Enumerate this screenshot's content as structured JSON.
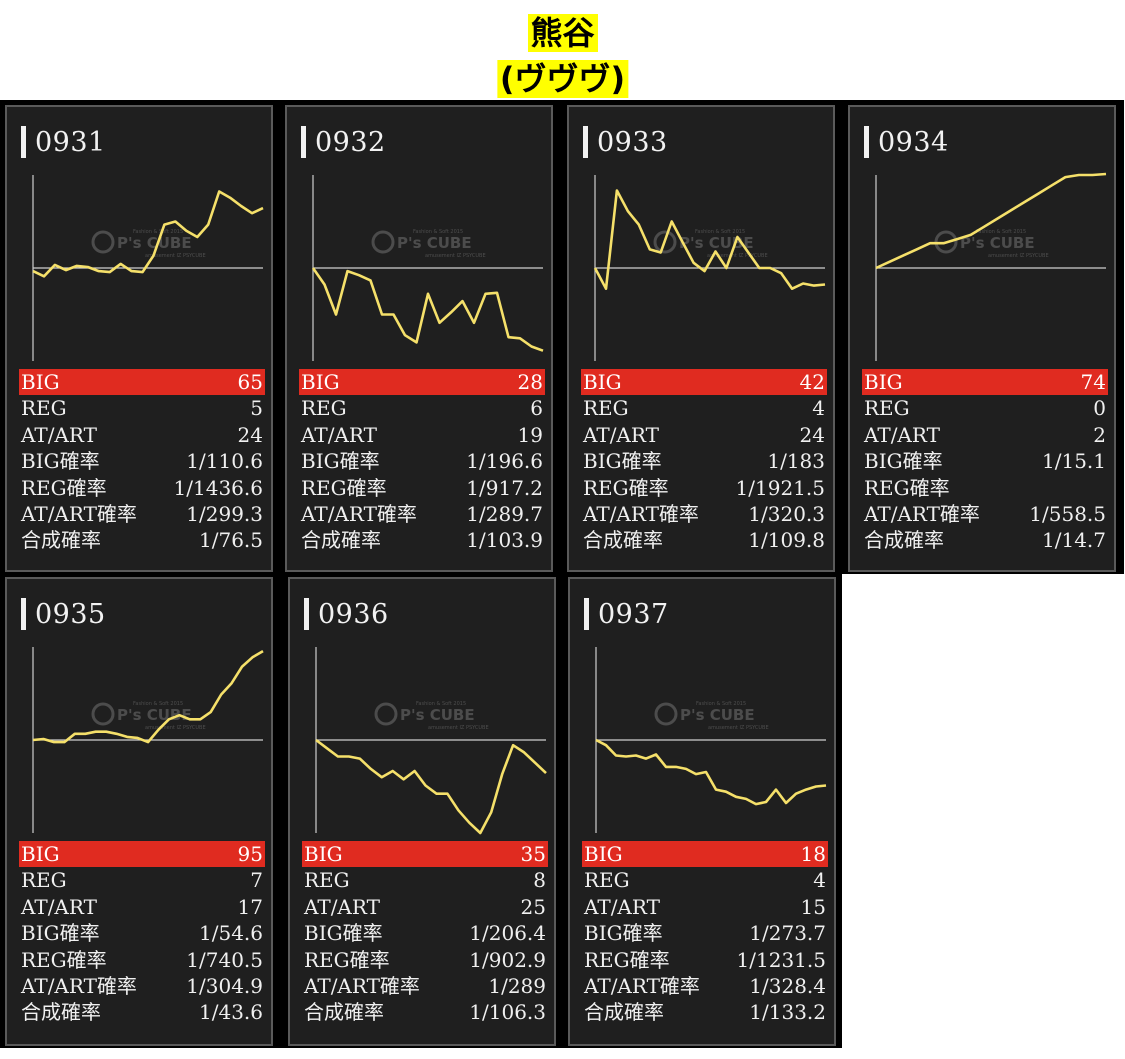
{
  "header": {
    "line1": "熊谷",
    "line2": "(ヴヴヴ)"
  },
  "watermark": {
    "brand": "P's CUBE",
    "small_top": "Fashion & Soft 2015",
    "small_bottom": "amusement IZ PSYCUBE"
  },
  "colors": {
    "accent_bar": "#e02b20",
    "line": "#f5e06a",
    "panel": "#1f1f1f"
  },
  "stat_labels": [
    "BIG",
    "REG",
    "AT/ART",
    "BIG確率",
    "REG確率",
    "AT/ART確率",
    "合成確率"
  ],
  "machines": [
    {
      "id": "0931",
      "stats": [
        "65",
        "5",
        "24",
        "1/110.6",
        "1/1436.6",
        "1/299.3",
        "1/76.5"
      ],
      "chart_data": {
        "type": "line",
        "x": [
          0,
          1,
          2,
          3,
          4,
          5,
          6,
          7,
          8,
          9,
          10,
          11,
          12,
          13,
          14,
          15,
          16,
          17,
          18,
          19,
          20,
          21
        ],
        "y": [
          -3,
          -8,
          3,
          -2,
          2,
          1,
          -3,
          -4,
          4,
          -3,
          -4,
          12,
          42,
          45,
          36,
          30,
          42,
          74,
          68,
          60,
          53,
          58
        ],
        "baseline": 0,
        "ylim": [
          -90,
          90
        ]
      }
    },
    {
      "id": "0932",
      "stats": [
        "28",
        "6",
        "19",
        "1/196.6",
        "1/917.2",
        "1/289.7",
        "1/103.9"
      ],
      "chart_data": {
        "type": "line",
        "x": [
          0,
          1,
          2,
          3,
          4,
          5,
          6,
          7,
          8,
          9,
          10,
          11,
          12,
          13,
          14,
          15,
          16,
          17,
          18,
          19,
          20
        ],
        "y": [
          0,
          -16,
          -45,
          -3,
          -7,
          -12,
          -45,
          -45,
          -65,
          -72,
          -25,
          -53,
          -43,
          -32,
          -53,
          -25,
          -24,
          -67,
          -68,
          -76,
          -80
        ],
        "baseline": 0,
        "ylim": [
          -90,
          90
        ]
      }
    },
    {
      "id": "0933",
      "stats": [
        "42",
        "4",
        "24",
        "1/183",
        "1/1921.5",
        "1/320.3",
        "1/109.8"
      ],
      "chart_data": {
        "type": "line",
        "x": [
          0,
          1,
          2,
          3,
          4,
          5,
          6,
          7,
          8,
          9,
          10,
          11,
          12,
          13,
          14,
          15,
          16,
          17,
          18,
          19,
          20,
          21
        ],
        "y": [
          0,
          -20,
          75,
          55,
          42,
          18,
          15,
          45,
          25,
          5,
          -3,
          16,
          0,
          30,
          15,
          0,
          0,
          -5,
          -20,
          -15,
          -17,
          -16
        ],
        "baseline": 0,
        "ylim": [
          -90,
          90
        ]
      }
    },
    {
      "id": "0934",
      "stats": [
        "74",
        "0",
        "2",
        "1/15.1",
        "",
        "1/558.5",
        "1/14.7"
      ],
      "chart_data": {
        "type": "line",
        "x": [
          0,
          1,
          2,
          3,
          4,
          5,
          6,
          7,
          8,
          9,
          10,
          11,
          12,
          13,
          14,
          15,
          16,
          17
        ],
        "y": [
          0,
          6,
          12,
          18,
          24,
          24,
          28,
          32,
          40,
          48,
          56,
          64,
          72,
          80,
          88,
          90,
          90,
          91
        ],
        "baseline": 0,
        "ylim": [
          -90,
          90
        ]
      }
    },
    {
      "id": "0935",
      "stats": [
        "95",
        "7",
        "17",
        "1/54.6",
        "1/740.5",
        "1/304.9",
        "1/43.6"
      ],
      "chart_data": {
        "type": "line",
        "x": [
          0,
          1,
          2,
          3,
          4,
          5,
          6,
          7,
          8,
          9,
          10,
          11,
          12,
          13,
          14,
          15,
          16,
          17,
          18,
          19,
          20,
          21,
          22
        ],
        "y": [
          0,
          1,
          -2,
          -2,
          6,
          6,
          8,
          8,
          6,
          3,
          2,
          -2,
          10,
          20,
          24,
          20,
          20,
          27,
          44,
          55,
          71,
          80,
          86
        ],
        "baseline": 0,
        "ylim": [
          -90,
          90
        ]
      }
    },
    {
      "id": "0936",
      "stats": [
        "35",
        "8",
        "25",
        "1/206.4",
        "1/902.9",
        "1/289",
        "1/106.3"
      ],
      "chart_data": {
        "type": "line",
        "x": [
          0,
          1,
          2,
          3,
          4,
          5,
          6,
          7,
          8,
          9,
          10,
          11,
          12,
          13,
          14,
          15,
          16,
          17,
          18,
          19,
          20,
          21
        ],
        "y": [
          0,
          -8,
          -16,
          -16,
          -18,
          -28,
          -36,
          -30,
          -38,
          -30,
          -44,
          -52,
          -52,
          -68,
          -80,
          -90,
          -70,
          -33,
          -5,
          -12,
          -22,
          -32
        ],
        "baseline": 0,
        "ylim": [
          -90,
          90
        ]
      }
    },
    {
      "id": "0937",
      "stats": [
        "18",
        "4",
        "15",
        "1/273.7",
        "1/1231.5",
        "1/328.4",
        "1/133.2"
      ],
      "chart_data": {
        "type": "line",
        "x": [
          0,
          1,
          2,
          3,
          4,
          5,
          6,
          7,
          8,
          9,
          10,
          11,
          12,
          13,
          14,
          15,
          16,
          17,
          18,
          19,
          20,
          21,
          22,
          23
        ],
        "y": [
          0,
          -5,
          -15,
          -16,
          -15,
          -18,
          -14,
          -26,
          -26,
          -28,
          -33,
          -31,
          -48,
          -50,
          -55,
          -57,
          -62,
          -60,
          -48,
          -61,
          -52,
          -48,
          -45,
          -44
        ],
        "baseline": 0,
        "ylim": [
          -90,
          90
        ]
      }
    }
  ]
}
